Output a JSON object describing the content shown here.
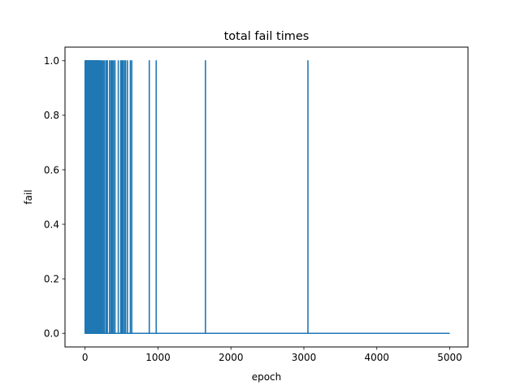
{
  "chart_data": {
    "type": "line",
    "title": "total fail times",
    "xlabel": "epoch",
    "ylabel": "fail",
    "xlim": [
      -275,
      5250
    ],
    "ylim": [
      -0.05,
      1.05
    ],
    "x_ticks": [
      0,
      1000,
      2000,
      3000,
      4000,
      5000
    ],
    "x_tick_labels": [
      "0",
      "1000",
      "2000",
      "3000",
      "4000",
      "5000"
    ],
    "y_ticks": [
      0.0,
      0.2,
      0.4,
      0.6,
      0.8,
      1.0
    ],
    "y_tick_labels": [
      "0.0",
      "0.2",
      "0.4",
      "0.6",
      "0.8",
      "1.0"
    ],
    "grid": false,
    "legend": "none",
    "series": [
      {
        "color": "#1f77b4",
        "fail_epochs": [
          0,
          2,
          4,
          6,
          8,
          10,
          13,
          16,
          19,
          22,
          25,
          28,
          31,
          35,
          40,
          45,
          50,
          55,
          60,
          66,
          72,
          78,
          84,
          90,
          97,
          104,
          111,
          118,
          125,
          133,
          141,
          149,
          157,
          165,
          173,
          182,
          191,
          200,
          215,
          232,
          250,
          268,
          290,
          305,
          335,
          355,
          372,
          390,
          410,
          455,
          488,
          505,
          520,
          540,
          555,
          580,
          620,
          640,
          880,
          975,
          1650,
          3055
        ],
        "x_max": 5000
      }
    ]
  }
}
